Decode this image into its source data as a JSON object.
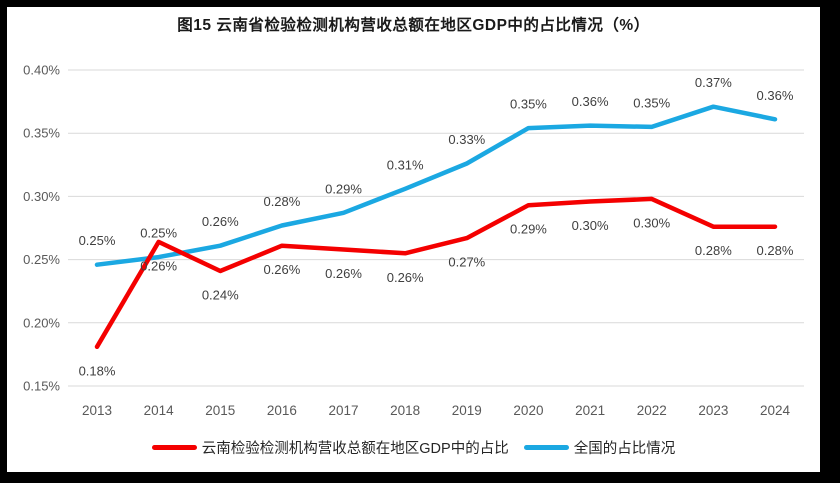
{
  "title": "图15 云南省检验检测机构营收总额在地区GDP中的占比情况（%）",
  "colors": {
    "frame": "#000000",
    "background": "#FFFFFF",
    "grid": "#D9D9D9",
    "axis_text": "#595959",
    "data_label_text": "#3F3F3F"
  },
  "chart_data": {
    "type": "line",
    "title": "图15 云南省检验检测机构营收总额在地区GDP中的占比情况（%）",
    "categories": [
      "2013",
      "2014",
      "2015",
      "2016",
      "2017",
      "2018",
      "2019",
      "2020",
      "2021",
      "2022",
      "2023",
      "2024"
    ],
    "y_axis": {
      "min": 0.15,
      "max": 0.4,
      "tick_labels": [
        "0.40%",
        "0.35%",
        "0.30%",
        "0.25%",
        "0.20%",
        "0.15%"
      ],
      "tick_values": [
        0.4,
        0.35,
        0.3,
        0.25,
        0.2,
        0.15
      ]
    },
    "grid": "horizontal",
    "legend_position": "bottom",
    "series": [
      {
        "key": "yunnan",
        "name": "云南检验检测机构营收总额在地区GDP中的占比",
        "color": "#F40000",
        "values": [
          0.18,
          0.26,
          0.24,
          0.26,
          0.26,
          0.26,
          0.27,
          0.29,
          0.3,
          0.3,
          0.28,
          0.28
        ],
        "data_labels": [
          "0.18%",
          "0.26%",
          "0.24%",
          "0.26%",
          "0.26%",
          "0.26%",
          "0.27%",
          "0.29%",
          "0.30%",
          "0.30%",
          "0.28%",
          "0.28%"
        ],
        "plot_values": [
          0.181,
          0.264,
          0.241,
          0.261,
          0.258,
          0.255,
          0.267,
          0.293,
          0.296,
          0.298,
          0.276,
          0.276
        ],
        "label_side": "below"
      },
      {
        "key": "national",
        "name": "全国的占比情况",
        "color": "#1BA8E2",
        "values": [
          0.25,
          0.25,
          0.26,
          0.28,
          0.29,
          0.31,
          0.33,
          0.35,
          0.36,
          0.35,
          0.37,
          0.36
        ],
        "data_labels": [
          "0.25%",
          "0.25%",
          "0.26%",
          "0.28%",
          "0.29%",
          "0.31%",
          "0.33%",
          "0.35%",
          "0.36%",
          "0.35%",
          "0.37%",
          "0.36%"
        ],
        "plot_values": [
          0.246,
          0.252,
          0.261,
          0.277,
          0.287,
          0.306,
          0.326,
          0.354,
          0.356,
          0.355,
          0.371,
          0.361
        ],
        "label_side": "above"
      }
    ]
  }
}
